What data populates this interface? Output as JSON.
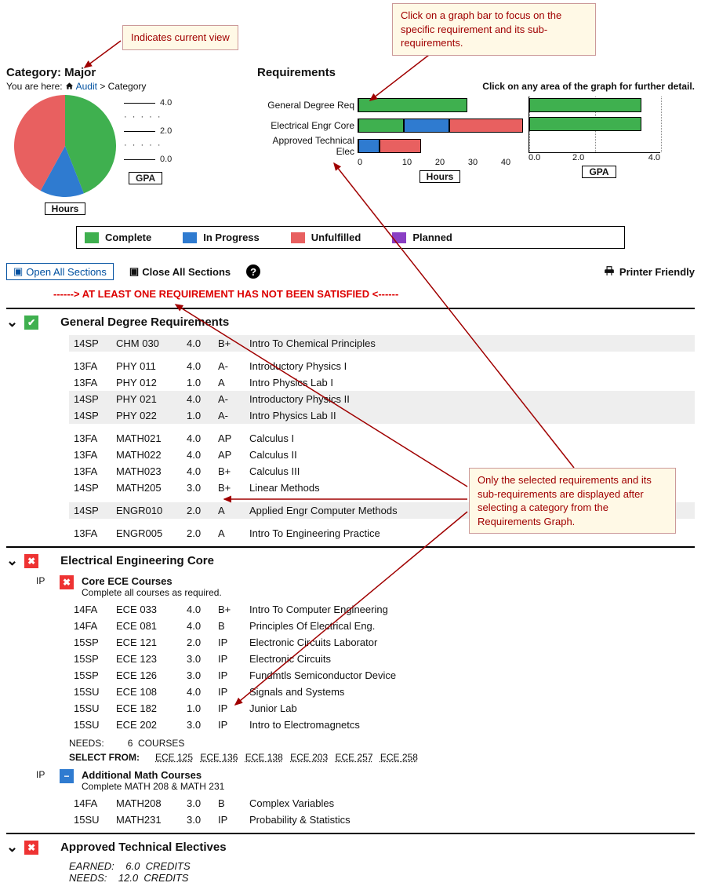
{
  "callouts": {
    "view": "Indicates current view",
    "bar": "Click on a graph bar to focus on the specific requirement and its sub-requirements.",
    "filter": "Only the selected requirements and its sub-requirements are displayed after selecting a category from the Requirements Graph."
  },
  "colors": {
    "complete": "#3fb04f",
    "inprogress": "#2f7bd0",
    "unfulfilled": "#e86060",
    "planned": "#8a3fc4",
    "ok": "#3fb04f",
    "bad": "#e33",
    "ip": "#2f7bd0",
    "callout_bg": "#fff9e6",
    "callout_text": "#a00000",
    "callout_border": "#c99"
  },
  "category": {
    "title": "Category: Major",
    "breadcrumb_prefix": "You are here: ",
    "breadcrumb_link": "Audit",
    "breadcrumb_tail": " > Category",
    "pie": {
      "slices": [
        {
          "label": "Complete",
          "pct": 44,
          "color": "#3fb04f"
        },
        {
          "label": "In Progress",
          "pct": 14,
          "color": "#2f7bd0"
        },
        {
          "label": "Unfulfilled",
          "pct": 42,
          "color": "#e86060"
        }
      ],
      "caption": "Hours"
    },
    "gpa_caption": "GPA",
    "gpa_ticks": [
      "4.0",
      "2.0",
      "0.0"
    ]
  },
  "requirements": {
    "title": "Requirements",
    "hint": "Click on any area of the graph for further detail.",
    "hours_chart": {
      "max": 47,
      "ticks": [
        0,
        10,
        20,
        30,
        40
      ],
      "caption": "Hours",
      "rows": [
        {
          "label": "General Degree Req",
          "segs": [
            {
              "color": "#3fb04f",
              "from": 0,
              "to": 31
            }
          ]
        },
        {
          "label": "Electrical Engr Core",
          "segs": [
            {
              "color": "#3fb04f",
              "from": 0,
              "to": 13
            },
            {
              "color": "#2f7bd0",
              "from": 13,
              "to": 26
            },
            {
              "color": "#e86060",
              "from": 26,
              "to": 47
            }
          ]
        },
        {
          "label": "Approved Technical Elec",
          "segs": [
            {
              "color": "#2f7bd0",
              "from": 0,
              "to": 6
            },
            {
              "color": "#e86060",
              "from": 6,
              "to": 18
            }
          ]
        }
      ]
    },
    "gpa_chart": {
      "max": 4.0,
      "ticks": [
        0.0,
        2.0,
        4.0
      ],
      "caption": "GPA",
      "bars": [
        {
          "val": 3.4,
          "color": "#3fb04f"
        },
        {
          "val": 3.4,
          "color": "#3fb04f"
        },
        {
          "val": 0,
          "color": "#3fb04f"
        }
      ]
    }
  },
  "legend": [
    {
      "label": "Complete",
      "key": "complete"
    },
    {
      "label": "In Progress",
      "key": "inprogress"
    },
    {
      "label": "Unfulfilled",
      "key": "unfulfilled"
    },
    {
      "label": "Planned",
      "key": "planned"
    }
  ],
  "toolbar": {
    "open_all": "Open All Sections",
    "close_all": "Close All Sections",
    "printer": "Printer Friendly"
  },
  "warning": "------> AT LEAST ONE REQUIREMENT HAS NOT BEEN SATISFIED <------",
  "sections": [
    {
      "id": "gen",
      "title": "General Degree Requirements",
      "status": "ok",
      "courses": [
        {
          "term": "14SP",
          "code": "CHM 030",
          "cred": "4.0",
          "grade": "B+",
          "name": "Intro To Chemical Principles",
          "alt": true
        },
        {
          "spacer": true
        },
        {
          "term": "13FA",
          "code": "PHY 011",
          "cred": "4.0",
          "grade": "A-",
          "name": "Introductory Physics I"
        },
        {
          "term": "13FA",
          "code": "PHY 012",
          "cred": "1.0",
          "grade": "A",
          "name": "Intro Physics Lab I"
        },
        {
          "term": "14SP",
          "code": "PHY 021",
          "cred": "4.0",
          "grade": "A-",
          "name": "Introductory Physics II",
          "alt": true
        },
        {
          "term": "14SP",
          "code": "PHY 022",
          "cred": "1.0",
          "grade": "A-",
          "name": "Intro Physics Lab II",
          "alt": true
        },
        {
          "spacer": true
        },
        {
          "term": "13FA",
          "code": "MATH021",
          "cred": "4.0",
          "grade": "AP",
          "name": "Calculus I"
        },
        {
          "term": "13FA",
          "code": "MATH022",
          "cred": "4.0",
          "grade": "AP",
          "name": "Calculus II"
        },
        {
          "term": "13FA",
          "code": "MATH023",
          "cred": "4.0",
          "grade": "B+",
          "name": "Calculus III"
        },
        {
          "term": "14SP",
          "code": "MATH205",
          "cred": "3.0",
          "grade": "B+",
          "name": "Linear Methods"
        },
        {
          "spacer": true
        },
        {
          "term": "14SP",
          "code": "ENGR010",
          "cred": "2.0",
          "grade": "A",
          "name": "Applied Engr Computer Methods",
          "alt": true
        },
        {
          "spacer": true
        },
        {
          "term": "13FA",
          "code": "ENGR005",
          "cred": "2.0",
          "grade": "A",
          "name": "Intro To Engineering Practice"
        }
      ]
    },
    {
      "id": "eec",
      "title": "Electrical Engineering Core",
      "status": "bad",
      "subs": [
        {
          "label": "IP",
          "status": "bad",
          "title": "Core ECE Courses",
          "desc": "Complete all courses as required.",
          "courses": [
            {
              "term": "14FA",
              "code": "ECE 033",
              "cred": "4.0",
              "grade": "B+",
              "name": "Intro To Computer Engineering"
            },
            {
              "term": "14FA",
              "code": "ECE 081",
              "cred": "4.0",
              "grade": "B",
              "name": "Principles Of Electrical Eng."
            },
            {
              "term": "15SP",
              "code": "ECE 121",
              "cred": "2.0",
              "grade": "IP",
              "name": "Electronic Circuits Laborator"
            },
            {
              "term": "15SP",
              "code": "ECE 123",
              "cred": "3.0",
              "grade": "IP",
              "name": "Electronic Circuits"
            },
            {
              "term": "15SP",
              "code": "ECE 126",
              "cred": "3.0",
              "grade": "IP",
              "name": "Fundmtls Semiconductor Device"
            },
            {
              "term": "15SU",
              "code": "ECE 108",
              "cred": "4.0",
              "grade": "IP",
              "name": "Signals and Systems"
            },
            {
              "term": "15SU",
              "code": "ECE 182",
              "cred": "1.0",
              "grade": "IP",
              "name": "Junior Lab"
            },
            {
              "term": "15SU",
              "code": "ECE 202",
              "cred": "3.0",
              "grade": "IP",
              "name": "Intro to Electromagnetcs"
            }
          ],
          "needs": {
            "label": "NEEDS:",
            "count": "6",
            "unit": "COURSES"
          },
          "select": {
            "label": "SELECT FROM:",
            "items": [
              "ECE 125",
              "ECE 136",
              "ECE 138",
              "ECE 203",
              "ECE 257",
              "ECE 258"
            ]
          }
        },
        {
          "label": "IP",
          "status": "ip",
          "title": "Additional Math Courses",
          "desc": "Complete MATH 208 & MATH 231",
          "courses": [
            {
              "term": "14FA",
              "code": "MATH208",
              "cred": "3.0",
              "grade": "B",
              "name": "Complex Variables"
            },
            {
              "term": "15SU",
              "code": "MATH231",
              "cred": "3.0",
              "grade": "IP",
              "name": "Probability & Statistics"
            }
          ]
        }
      ]
    },
    {
      "id": "ate",
      "title": "Approved Technical Electives",
      "status": "bad",
      "earned": {
        "label": "EARNED:",
        "val": "6.0",
        "unit": "CREDITS"
      },
      "needs_e": {
        "label": "NEEDS:",
        "val": "12.0",
        "unit": "CREDITS"
      }
    }
  ]
}
